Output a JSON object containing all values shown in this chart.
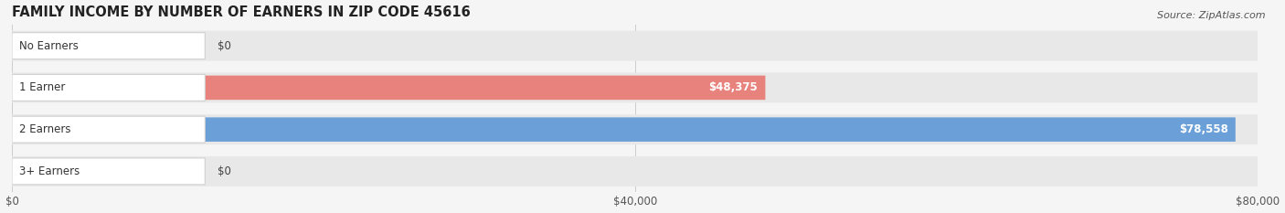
{
  "title": "FAMILY INCOME BY NUMBER OF EARNERS IN ZIP CODE 45616",
  "source": "Source: ZipAtlas.com",
  "categories": [
    "No Earners",
    "1 Earner",
    "2 Earners",
    "3+ Earners"
  ],
  "values": [
    0,
    48375,
    78558,
    0
  ],
  "bar_colors": [
    "#f5c48a",
    "#e8827d",
    "#6a9fd8",
    "#c3a8d8"
  ],
  "track_color": "#e8e8e8",
  "xlim": [
    0,
    80000
  ],
  "xticks": [
    0,
    40000,
    80000
  ],
  "xtick_labels": [
    "$0",
    "$40,000",
    "$80,000"
  ],
  "value_labels": [
    "$0",
    "$48,375",
    "$78,558",
    "$0"
  ],
  "title_fontsize": 10.5,
  "source_fontsize": 8,
  "label_fontsize": 8.5,
  "tick_fontsize": 8.5,
  "background_color": "#f5f5f5"
}
